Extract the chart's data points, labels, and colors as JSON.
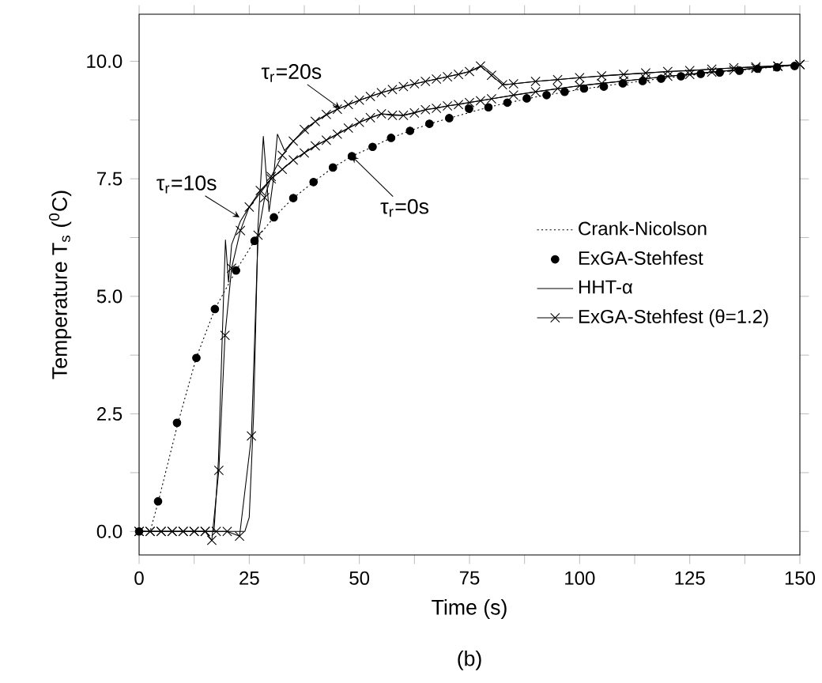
{
  "chart_data": {
    "type": "line",
    "xlabel": "Time (s)",
    "ylabel": "Temperature T$_{s}$ ($^{0}$C)",
    "xlim": [
      0,
      150
    ],
    "ylim": [
      -0.5,
      11
    ],
    "xticks": [
      0,
      {
        "value": 12.5,
        "label": null
      },
      25,
      {
        "value": 37.5,
        "label": null
      },
      50,
      {
        "value": 62.5,
        "label": null
      },
      75,
      {
        "value": 87.5,
        "label": null
      },
      100,
      {
        "value": 112.5,
        "label": null
      },
      125,
      {
        "value": 137.5,
        "label": null
      },
      150
    ],
    "yticks": [
      {
        "value": 0,
        "label": "0.0"
      },
      {
        "value": 1.25,
        "label": null
      },
      {
        "value": 2.5,
        "label": "2.5"
      },
      {
        "value": 3.75,
        "label": null
      },
      {
        "value": 5,
        "label": "5.0"
      },
      {
        "value": 6.25,
        "label": null
      },
      {
        "value": 7.5,
        "label": "7.5"
      },
      {
        "value": 8.75,
        "label": null
      },
      {
        "value": 10,
        "label": "10.0"
      }
    ],
    "grid": false,
    "legend": "right",
    "series": [
      {
        "name": "Crank-Nicolson",
        "line_style": "dotted",
        "marker": "none",
        "color": "#000000",
        "x": [
          0,
          2.5,
          4.4,
          8.8,
          13,
          17.2,
          22,
          26.2,
          30.6,
          35,
          39.6,
          44,
          48.3,
          53,
          57.2,
          61.5,
          66,
          70.4,
          80,
          90,
          100,
          110,
          120,
          130,
          140,
          150
        ],
        "values": [
          0,
          0,
          0.65,
          2.3,
          3.7,
          4.73,
          5.55,
          6.18,
          6.68,
          7.09,
          7.43,
          7.74,
          7.98,
          8.18,
          8.37,
          8.52,
          8.67,
          8.79,
          9.04,
          9.24,
          9.4,
          9.53,
          9.65,
          9.75,
          9.84,
          9.92
        ]
      },
      {
        "name": "ExGA-Stehfest",
        "type": "scatter",
        "marker": "circle",
        "color": "#000000",
        "x": [
          0,
          4.3,
          8.6,
          13,
          17.2,
          22,
          26.2,
          30.6,
          35,
          39.6,
          44,
          48.3,
          53,
          57.2,
          61.5,
          65.9,
          70.4,
          74.9,
          79.3,
          83.6,
          88,
          92.5,
          96.6,
          101,
          105.5,
          109.8,
          114.3,
          118.5,
          123,
          127.5,
          131.8,
          136.3,
          140.4,
          144.8,
          148.8
        ],
        "values": [
          0,
          0.64,
          2.31,
          3.69,
          4.73,
          5.55,
          6.18,
          6.68,
          7.09,
          7.43,
          7.74,
          7.98,
          8.18,
          8.37,
          8.52,
          8.67,
          8.79,
          8.99,
          9.02,
          9.12,
          9.21,
          9.28,
          9.35,
          9.42,
          9.46,
          9.53,
          9.58,
          9.63,
          9.68,
          9.73,
          9.76,
          9.8,
          9.84,
          9.87,
          9.9
        ]
      },
      {
        "name": "HHT-α",
        "line_style": "solid",
        "color": "#000000",
        "x": [
          0,
          17,
          18,
          19,
          19.6,
          20.3,
          21,
          23,
          25,
          30,
          35,
          40,
          45,
          50,
          55,
          60,
          65,
          70,
          80,
          90,
          100,
          110,
          120,
          130,
          140,
          150
        ],
        "values": [
          0,
          0,
          1.5,
          4.5,
          6.2,
          5.3,
          6.1,
          6.6,
          6.9,
          7.5,
          7.9,
          8.2,
          8.45,
          8.7,
          8.88,
          8.85,
          8.97,
          9.05,
          9.2,
          9.35,
          9.48,
          9.58,
          9.68,
          9.77,
          9.85,
          9.93
        ]
      },
      {
        "line_style": "solid",
        "color": "#000000",
        "x": [
          0,
          24,
          25,
          26,
          27,
          28.2,
          29.5,
          30.5,
          31.4,
          33,
          35,
          40,
          45,
          50,
          55,
          60,
          65,
          70,
          75,
          78,
          80,
          83,
          90,
          100,
          110,
          120,
          130,
          140,
          150
        ],
        "values": [
          0,
          0,
          0.3,
          2.5,
          6.5,
          8.4,
          6.8,
          7.5,
          8.45,
          8.1,
          8.3,
          8.72,
          8.98,
          9.17,
          9.33,
          9.46,
          9.57,
          9.67,
          9.78,
          9.9,
          9.75,
          9.5,
          9.57,
          9.65,
          9.72,
          9.78,
          9.83,
          9.88,
          9.93
        ]
      },
      {
        "name": "ExGA-Stehfest (θ=1.2)",
        "line_style": "solid",
        "marker": "cross",
        "color": "#000000",
        "x": [
          0,
          2.5,
          5,
          7.5,
          10,
          12.5,
          15,
          16.5,
          18.1,
          19.5,
          21,
          23,
          25,
          27.5,
          30,
          32.5,
          35,
          37.5,
          40,
          42.5,
          45,
          47.5,
          50,
          52.5,
          55,
          57.5,
          60,
          62.5,
          65,
          67.5,
          70,
          72.5,
          75,
          77.5,
          80,
          85,
          90,
          95,
          100,
          105,
          110,
          115,
          120,
          125,
          130,
          135,
          140,
          145,
          150
        ],
        "values": [
          0,
          0,
          0,
          0,
          0,
          0,
          0,
          -0.19,
          1.3,
          4.17,
          5.6,
          6.4,
          6.9,
          7.25,
          7.5,
          7.7,
          7.9,
          8.05,
          8.2,
          8.32,
          8.45,
          8.58,
          8.7,
          8.8,
          8.88,
          8.85,
          8.85,
          8.9,
          8.97,
          9.0,
          9.05,
          9.08,
          9.12,
          9.16,
          9.2,
          9.28,
          9.35,
          9.42,
          9.48,
          9.53,
          9.58,
          9.63,
          9.68,
          9.72,
          9.77,
          9.81,
          9.85,
          9.89,
          9.93
        ]
      },
      {
        "line_style": "solid",
        "marker": "cross",
        "color": "#000000",
        "x": [
          0,
          2.5,
          5,
          7.5,
          10,
          12.5,
          15,
          17.5,
          20,
          22.8,
          25.5,
          27,
          28.5,
          30,
          32.5,
          35,
          37.5,
          40,
          42.5,
          45,
          47.5,
          50,
          52.5,
          55,
          57.5,
          60,
          62.5,
          65,
          67.5,
          70,
          72.5,
          75,
          77.5,
          80,
          82.5,
          85,
          90,
          95,
          100,
          105,
          110,
          115,
          120,
          125,
          130,
          135,
          140,
          145,
          150
        ],
        "values": [
          0,
          0,
          0,
          0,
          0,
          0,
          0,
          0,
          0,
          -0.1,
          2.03,
          6.3,
          7.1,
          7.55,
          8.0,
          8.3,
          8.55,
          8.72,
          8.87,
          8.98,
          9.08,
          9.17,
          9.25,
          9.33,
          9.4,
          9.46,
          9.52,
          9.57,
          9.62,
          9.67,
          9.72,
          9.78,
          9.9,
          9.7,
          9.5,
          9.52,
          9.57,
          9.61,
          9.65,
          9.69,
          9.72,
          9.75,
          9.78,
          9.8,
          9.83,
          9.86,
          9.88,
          9.9,
          9.93
        ]
      }
    ],
    "annotations": [
      {
        "text": "τ$_{r}$=20s",
        "x": 45.6,
        "y": 9.0
      },
      {
        "text": "τ$_{r}$=10s",
        "x": 22.8,
        "y": 6.68
      },
      {
        "text": "τ$_{r}$=0s",
        "x": 48.3,
        "y": 7.98
      },
      "(b)"
    ]
  }
}
